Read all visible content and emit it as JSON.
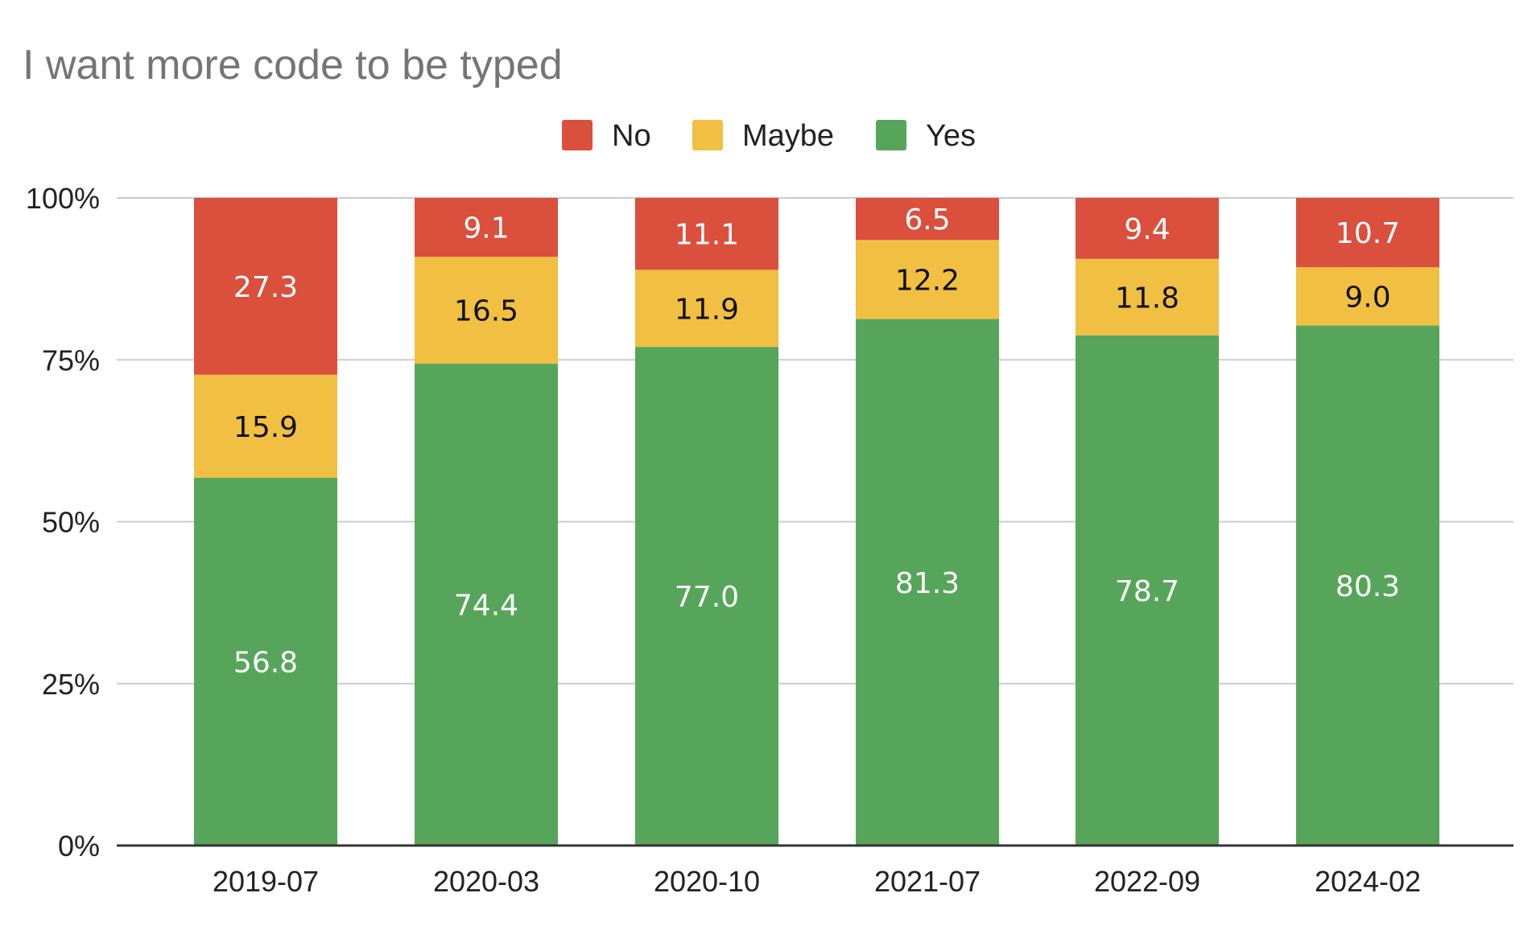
{
  "chart_data": {
    "type": "bar",
    "stacked": true,
    "percent_stacked": true,
    "title": "I want more code to be typed",
    "xlabel": "",
    "ylabel": "",
    "ylim": [
      0,
      100
    ],
    "y_ticks": [
      "0%",
      "25%",
      "50%",
      "75%",
      "100%"
    ],
    "grid": true,
    "legend_position": "top",
    "categories": [
      "2019-07",
      "2020-03",
      "2020-10",
      "2021-07",
      "2022-09",
      "2024-02"
    ],
    "series": [
      {
        "name": "Yes",
        "color": "#57a55a",
        "label_color": "#ffffff",
        "values": [
          56.8,
          74.4,
          77.0,
          81.3,
          78.7,
          80.3
        ]
      },
      {
        "name": "Maybe",
        "color": "#f1bf42",
        "label_color": "#111111",
        "values": [
          15.9,
          16.5,
          11.9,
          12.2,
          11.8,
          9.0
        ]
      },
      {
        "name": "No",
        "color": "#db4f3d",
        "label_color": "#ffffff",
        "values": [
          27.3,
          9.1,
          11.1,
          6.5,
          9.4,
          10.7
        ]
      }
    ],
    "legend_order": [
      "No",
      "Maybe",
      "Yes"
    ],
    "data_label_decimals": 1
  }
}
